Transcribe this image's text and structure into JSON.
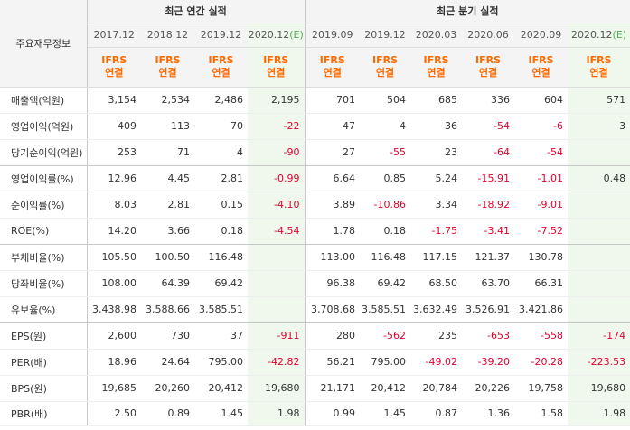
{
  "table": {
    "row_header_label": "주요재무정보",
    "groups": [
      "최근 연간 실적",
      "최근 분기 실적"
    ],
    "periods": [
      "2017.12",
      "2018.12",
      "2019.12",
      "2020.12",
      "2019.09",
      "2019.12",
      "2020.03",
      "2020.06",
      "2020.09",
      "2020.12"
    ],
    "estimate_mark": "(E)",
    "ifrs_top": "IFRS",
    "ifrs_bottom": "연결",
    "rows": [
      {
        "label": "매출액(억원)",
        "values": [
          "3,154",
          "2,534",
          "2,486",
          "2,195",
          "701",
          "504",
          "685",
          "336",
          "604",
          "571"
        ]
      },
      {
        "label": "영업이익(억원)",
        "values": [
          "409",
          "113",
          "70",
          "-22",
          "47",
          "4",
          "36",
          "-54",
          "-6",
          "3"
        ]
      },
      {
        "label": "당기순이익(억원)",
        "values": [
          "253",
          "71",
          "4",
          "-90",
          "27",
          "-55",
          "23",
          "-64",
          "-54",
          ""
        ]
      },
      {
        "label": "영업이익률(%)",
        "values": [
          "12.96",
          "4.45",
          "2.81",
          "-0.99",
          "6.64",
          "0.85",
          "5.24",
          "-15.91",
          "-1.01",
          "0.48"
        ]
      },
      {
        "label": "순이익률(%)",
        "values": [
          "8.03",
          "2.81",
          "0.15",
          "-4.10",
          "3.89",
          "-10.86",
          "3.34",
          "-18.92",
          "-9.01",
          ""
        ]
      },
      {
        "label": "ROE(%)",
        "values": [
          "14.20",
          "3.66",
          "0.18",
          "-4.54",
          "1.78",
          "0.18",
          "-1.75",
          "-3.41",
          "-7.52",
          ""
        ]
      },
      {
        "label": "부채비율(%)",
        "values": [
          "105.50",
          "100.50",
          "116.48",
          "",
          "113.00",
          "116.48",
          "117.15",
          "121.37",
          "130.78",
          ""
        ]
      },
      {
        "label": "당좌비율(%)",
        "values": [
          "108.00",
          "64.39",
          "69.42",
          "",
          "96.38",
          "69.42",
          "68.50",
          "63.70",
          "66.31",
          ""
        ]
      },
      {
        "label": "유보율(%)",
        "values": [
          "3,438.98",
          "3,588.66",
          "3,585.51",
          "",
          "3,708.68",
          "3,585.51",
          "3,632.49",
          "3,526.91",
          "3,421.86",
          ""
        ]
      },
      {
        "label": "EPS(원)",
        "values": [
          "2,600",
          "730",
          "37",
          "-911",
          "280",
          "-562",
          "235",
          "-653",
          "-558",
          "-174"
        ]
      },
      {
        "label": "PER(배)",
        "values": [
          "18.96",
          "24.64",
          "795.00",
          "-42.82",
          "56.21",
          "795.00",
          "-49.02",
          "-39.20",
          "-20.28",
          "-223.53"
        ]
      },
      {
        "label": "BPS(원)",
        "values": [
          "19,685",
          "20,260",
          "20,412",
          "19,680",
          "21,171",
          "20,412",
          "20,784",
          "20,226",
          "19,758",
          "19,680"
        ]
      },
      {
        "label": "PBR(배)",
        "values": [
          "2.50",
          "0.89",
          "1.45",
          "1.98",
          "0.99",
          "1.45",
          "0.87",
          "1.36",
          "1.58",
          "1.98"
        ]
      }
    ]
  }
}
